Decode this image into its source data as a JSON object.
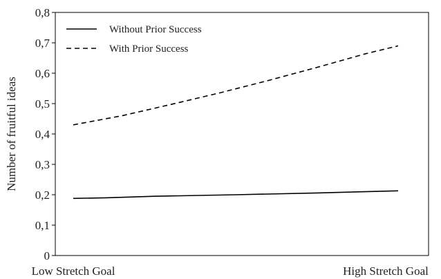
{
  "chart_data": {
    "type": "line",
    "title": "",
    "xlabel": "",
    "ylabel": "Number of fruitful ideas",
    "categories": [
      "Low Stretch Goal",
      "High Stretch Goal"
    ],
    "ylim": [
      0,
      0.8
    ],
    "yticks": [
      "0",
      "0,1",
      "0,2",
      "0,3",
      "0,4",
      "0,5",
      "0,6",
      "0,7",
      "0,8"
    ],
    "grid": false,
    "legend_position": "top-left",
    "series": [
      {
        "name": "Without Prior Success",
        "style": "solid",
        "color": "#000000",
        "points": [
          [
            0,
            0.188
          ],
          [
            0.1,
            0.19
          ],
          [
            0.25,
            0.195
          ],
          [
            0.5,
            0.2
          ],
          [
            0.75,
            0.206
          ],
          [
            1,
            0.213
          ]
        ]
      },
      {
        "name": "With Prior Success",
        "style": "dashed",
        "color": "#000000",
        "points": [
          [
            0,
            0.43
          ],
          [
            0.15,
            0.46
          ],
          [
            0.3,
            0.497
          ],
          [
            0.45,
            0.535
          ],
          [
            0.6,
            0.576
          ],
          [
            0.75,
            0.619
          ],
          [
            0.9,
            0.664
          ],
          [
            1,
            0.69
          ]
        ]
      }
    ]
  }
}
